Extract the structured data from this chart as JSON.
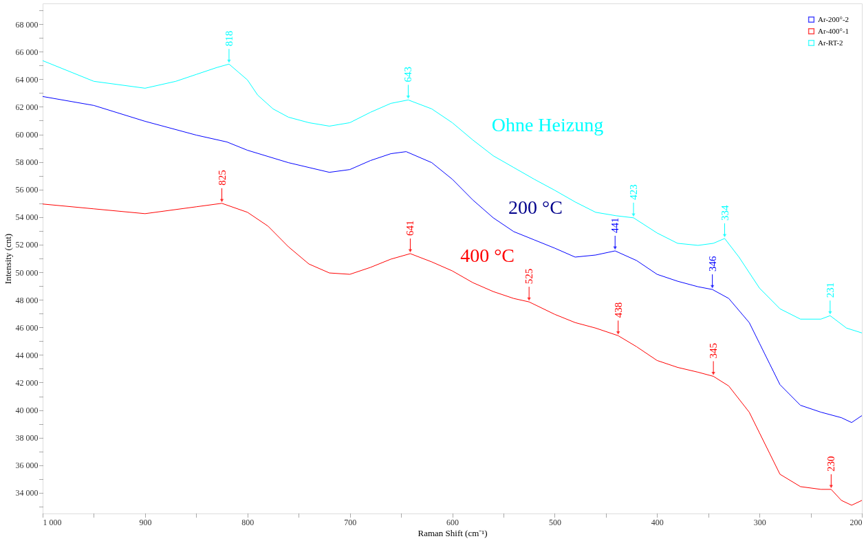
{
  "chart_data": {
    "type": "line",
    "xlabel": "Raman Shift (cm⁻¹)",
    "ylabel": "Intensity (cnt)",
    "xlim": [
      1000,
      200
    ],
    "ylim": [
      32500,
      69500
    ],
    "xticks": [
      {
        "value": 1000,
        "label": "1 000"
      },
      {
        "value": 950,
        "label": null
      },
      900,
      {
        "value": 850,
        "label": null
      },
      800,
      {
        "value": 750,
        "label": null
      },
      700,
      {
        "value": 650,
        "label": null
      },
      600,
      {
        "value": 550,
        "label": null
      },
      500,
      {
        "value": 450,
        "label": null
      },
      400,
      {
        "value": 350,
        "label": null
      },
      300,
      {
        "value": 250,
        "label": null
      },
      200
    ],
    "yticks": [
      {
        "value": 33000,
        "label": null
      },
      {
        "value": 34000,
        "label": "34 000"
      },
      {
        "value": 35000,
        "label": null
      },
      {
        "value": 36000,
        "label": "36 000"
      },
      {
        "value": 37000,
        "label": null
      },
      {
        "value": 38000,
        "label": "38 000"
      },
      {
        "value": 39000,
        "label": null
      },
      {
        "value": 40000,
        "label": "40 000"
      },
      {
        "value": 41000,
        "label": null
      },
      {
        "value": 42000,
        "label": "42 000"
      },
      {
        "value": 43000,
        "label": null
      },
      {
        "value": 44000,
        "label": "44 000"
      },
      {
        "value": 45000,
        "label": null
      },
      {
        "value": 46000,
        "label": "46 000"
      },
      {
        "value": 47000,
        "label": null
      },
      {
        "value": 48000,
        "label": "48 000"
      },
      {
        "value": 49000,
        "label": null
      },
      {
        "value": 50000,
        "label": "50 000"
      },
      {
        "value": 51000,
        "label": null
      },
      {
        "value": 52000,
        "label": "52 000"
      },
      {
        "value": 53000,
        "label": null
      },
      {
        "value": 54000,
        "label": "54 000"
      },
      {
        "value": 55000,
        "label": null
      },
      {
        "value": 56000,
        "label": "56 000"
      },
      {
        "value": 57000,
        "label": null
      },
      {
        "value": 58000,
        "label": "58 000"
      },
      {
        "value": 59000,
        "label": null
      },
      {
        "value": 60000,
        "label": "60 000"
      },
      {
        "value": 61000,
        "label": null
      },
      {
        "value": 62000,
        "label": "62 000"
      },
      {
        "value": 63000,
        "label": null
      },
      {
        "value": 64000,
        "label": "64 000"
      },
      {
        "value": 65000,
        "label": null
      },
      {
        "value": 66000,
        "label": "66 000"
      },
      {
        "value": 67000,
        "label": null
      },
      {
        "value": 68000,
        "label": "68 000"
      },
      {
        "value": 69000,
        "label": null
      }
    ],
    "grid": false,
    "legend": "top right",
    "marker": "none",
    "line_style": "solid",
    "series": [
      {
        "name": "Ar-200°-2",
        "color": "#0000ff",
        "x": [
          1000,
          950,
          900,
          850,
          820,
          800,
          760,
          740,
          720,
          700,
          680,
          660,
          645,
          620,
          600,
          580,
          560,
          540,
          520,
          500,
          480,
          460,
          441,
          420,
          400,
          380,
          360,
          346,
          330,
          310,
          300,
          290,
          280,
          260,
          240,
          220,
          210,
          200
        ],
        "values": [
          62750,
          62100,
          60950,
          59950,
          59450,
          58850,
          57950,
          57600,
          57250,
          57450,
          58100,
          58600,
          58750,
          57950,
          56750,
          55250,
          53950,
          52950,
          52350,
          51750,
          51100,
          51250,
          51550,
          50850,
          49850,
          49350,
          48950,
          48750,
          48100,
          46350,
          44850,
          43350,
          41850,
          40350,
          39850,
          39450,
          39100,
          39600
        ]
      },
      {
        "name": "Ar-400°-1",
        "color": "#ff0000",
        "x": [
          1000,
          950,
          900,
          850,
          825,
          800,
          780,
          760,
          740,
          720,
          700,
          680,
          660,
          641,
          620,
          600,
          580,
          560,
          540,
          525,
          500,
          480,
          460,
          438,
          420,
          400,
          380,
          360,
          345,
          330,
          310,
          300,
          290,
          280,
          260,
          240,
          230,
          220,
          210,
          200
        ],
        "values": [
          54950,
          54600,
          54250,
          54750,
          55000,
          54350,
          53350,
          51850,
          50600,
          49950,
          49850,
          50350,
          50950,
          51350,
          50750,
          50100,
          49250,
          48600,
          48100,
          47850,
          46950,
          46350,
          45950,
          45400,
          44600,
          43600,
          43100,
          42750,
          42450,
          41750,
          39850,
          38350,
          36850,
          35350,
          34450,
          34250,
          34250,
          33450,
          33100,
          33450
        ]
      },
      {
        "name": "Ar-RT-2",
        "color": "#00ffff",
        "x": [
          1000,
          950,
          900,
          870,
          850,
          830,
          818,
          800,
          790,
          775,
          760,
          740,
          720,
          700,
          680,
          660,
          643,
          620,
          600,
          580,
          560,
          540,
          520,
          500,
          480,
          460,
          440,
          423,
          400,
          380,
          360,
          345,
          334,
          320,
          300,
          280,
          260,
          240,
          231,
          215,
          200
        ],
        "values": [
          65350,
          63850,
          63350,
          63850,
          64350,
          64850,
          65100,
          63950,
          62850,
          61850,
          61250,
          60850,
          60600,
          60850,
          61600,
          62250,
          62500,
          61850,
          60850,
          59600,
          58450,
          57600,
          56750,
          55950,
          55100,
          54350,
          54100,
          53950,
          52850,
          52100,
          51950,
          52100,
          52450,
          51100,
          48850,
          47350,
          46600,
          46600,
          46850,
          45950,
          45600
        ]
      }
    ],
    "annotations": [
      {
        "text": "818",
        "x": 818,
        "y": 65100
      },
      {
        "text": "643",
        "x": 643,
        "y": 62500
      },
      {
        "text": "423",
        "x": 423,
        "y": 53950
      },
      {
        "text": "334",
        "x": 334,
        "y": 52450
      },
      {
        "text": "231",
        "x": 231,
        "y": 46850
      },
      {
        "text": "441",
        "x": 441,
        "y": 51550
      },
      {
        "text": "346",
        "x": 346,
        "y": 48750
      },
      {
        "text": "825",
        "x": 825,
        "y": 55000
      },
      {
        "text": "641",
        "x": 641,
        "y": 51350
      },
      {
        "text": "525",
        "x": 525,
        "y": 47850
      },
      {
        "text": "438",
        "x": 438,
        "y": 45400
      },
      {
        "text": "345",
        "x": 345,
        "y": 42450
      },
      {
        "text": "230",
        "x": 230,
        "y": 34250
      },
      "Ohne Heizung",
      "200 °C",
      "400 °C"
    ]
  }
}
